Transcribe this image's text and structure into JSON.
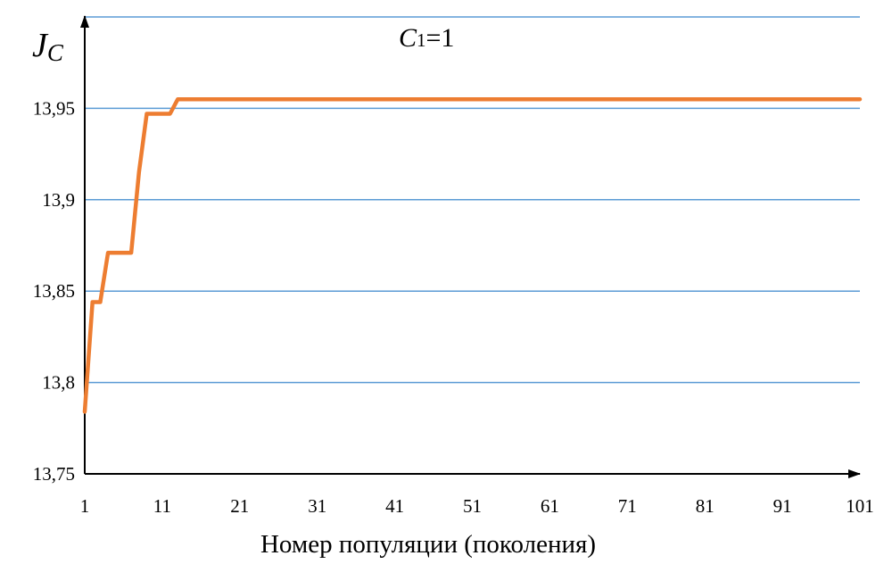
{
  "chart_data": {
    "type": "line",
    "title": {
      "symbol": "C",
      "subscript": "1",
      "rest": "=1"
    },
    "ylabel": {
      "symbol": "J",
      "subscript": "C"
    },
    "xlabel": "Номер популяции (поколения)",
    "ylim": [
      13.75,
      14.0
    ],
    "yticks": [
      "13,75",
      "13,8",
      "13,85",
      "13,9",
      "13,95"
    ],
    "yticks_values": [
      13.75,
      13.8,
      13.85,
      13.9,
      13.95
    ],
    "xlim": [
      1,
      101
    ],
    "xticks": [
      "1",
      "11",
      "21",
      "31",
      "41",
      "51",
      "61",
      "71",
      "81",
      "91",
      "101"
    ],
    "xticks_values": [
      1,
      11,
      21,
      31,
      41,
      51,
      61,
      71,
      81,
      91,
      101
    ],
    "grid": "horizontal",
    "line_color": "#ed7d31",
    "grid_color": "#5b9bd5",
    "series": [
      {
        "x": [
          1,
          2,
          3,
          4,
          5,
          6,
          7,
          8,
          9,
          10,
          11,
          12,
          13,
          14,
          15,
          20,
          30,
          40,
          50,
          60,
          70,
          80,
          90,
          101
        ],
        "values": [
          13.784,
          13.844,
          13.844,
          13.871,
          13.871,
          13.871,
          13.871,
          13.915,
          13.947,
          13.947,
          13.947,
          13.947,
          13.955,
          13.955,
          13.955,
          13.955,
          13.955,
          13.955,
          13.955,
          13.955,
          13.955,
          13.955,
          13.955,
          13.955
        ]
      }
    ]
  }
}
